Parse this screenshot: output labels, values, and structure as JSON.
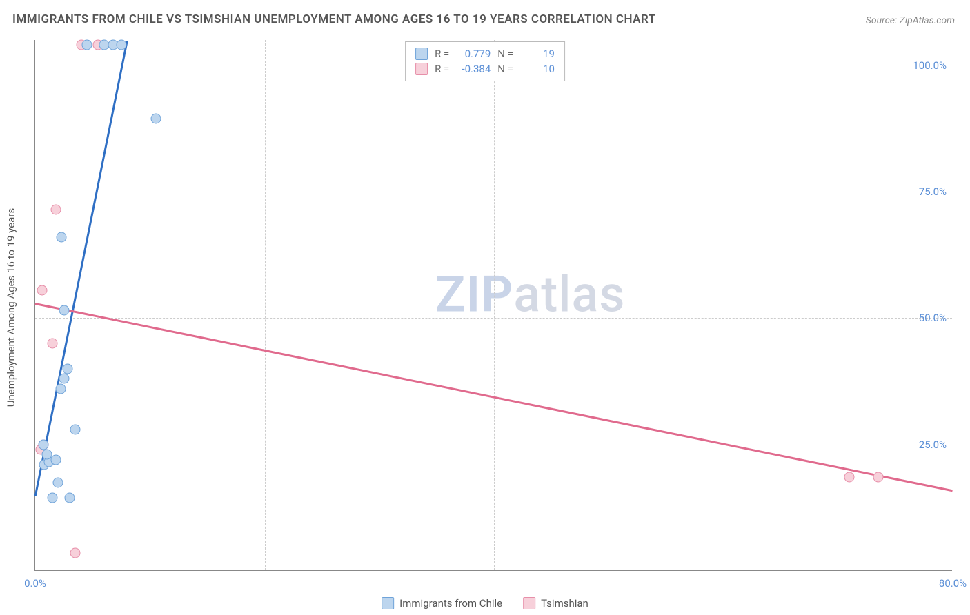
{
  "title": "IMMIGRANTS FROM CHILE VS TSIMSHIAN UNEMPLOYMENT AMONG AGES 16 TO 19 YEARS CORRELATION CHART",
  "source": "Source: ZipAtlas.com",
  "ylabel": "Unemployment Among Ages 16 to 19 years",
  "watermark_1": "ZIP",
  "watermark_2": "atlas",
  "chart": {
    "type": "scatter-correlation",
    "background_color": "#ffffff",
    "grid_color": "#cccccc",
    "axis_color": "#888888",
    "xlim": [
      0,
      80
    ],
    "ylim": [
      0,
      105
    ],
    "xtick_labels": [
      "0.0%",
      "80.0%"
    ],
    "xtick_positions": [
      0,
      80
    ],
    "ytick_labels": [
      "25.0%",
      "50.0%",
      "75.0%",
      "100.0%"
    ],
    "ytick_positions": [
      25,
      50,
      75,
      100
    ],
    "hgrid_positions": [
      25,
      50,
      75
    ],
    "vgrid_positions": [
      20,
      40,
      60
    ],
    "series": {
      "chile": {
        "label": "Immigrants from Chile",
        "marker_fill": "#bcd5ee",
        "marker_stroke": "#6fa3d9",
        "line_color": "#2f6fc4",
        "r_value": "0.779",
        "n_value": "19",
        "points": [
          [
            1.5,
            14.5
          ],
          [
            3.0,
            14.5
          ],
          [
            2.0,
            17.5
          ],
          [
            0.8,
            21.0
          ],
          [
            1.2,
            21.5
          ],
          [
            1.8,
            22.0
          ],
          [
            1.0,
            23.0
          ],
          [
            0.7,
            25.0
          ],
          [
            3.5,
            28.0
          ],
          [
            2.2,
            36.0
          ],
          [
            2.5,
            38.0
          ],
          [
            2.8,
            40.0
          ],
          [
            2.5,
            51.5
          ],
          [
            2.3,
            66.0
          ],
          [
            10.5,
            89.5
          ],
          [
            4.5,
            104.0
          ],
          [
            6.0,
            104.0
          ],
          [
            6.8,
            104.0
          ],
          [
            7.5,
            104.0
          ]
        ],
        "regression": {
          "x1": 0,
          "y1": 15,
          "x2": 8,
          "y2": 105
        }
      },
      "tsimshian": {
        "label": "Tsimshian",
        "marker_fill": "#f7d0da",
        "marker_stroke": "#e78fa9",
        "line_color": "#e06a8d",
        "r_value": "-0.384",
        "n_value": "10",
        "points": [
          [
            3.5,
            3.5
          ],
          [
            0.5,
            24.0
          ],
          [
            0.7,
            25.0
          ],
          [
            1.5,
            45.0
          ],
          [
            0.6,
            55.5
          ],
          [
            1.8,
            71.5
          ],
          [
            4.0,
            104.0
          ],
          [
            5.5,
            104.0
          ],
          [
            71.0,
            18.5
          ],
          [
            73.5,
            18.5
          ]
        ],
        "regression": {
          "x1": 0,
          "y1": 53,
          "x2": 80,
          "y2": 16
        }
      }
    }
  },
  "top_legend": {
    "r_label": "R =",
    "n_label": "N ="
  }
}
